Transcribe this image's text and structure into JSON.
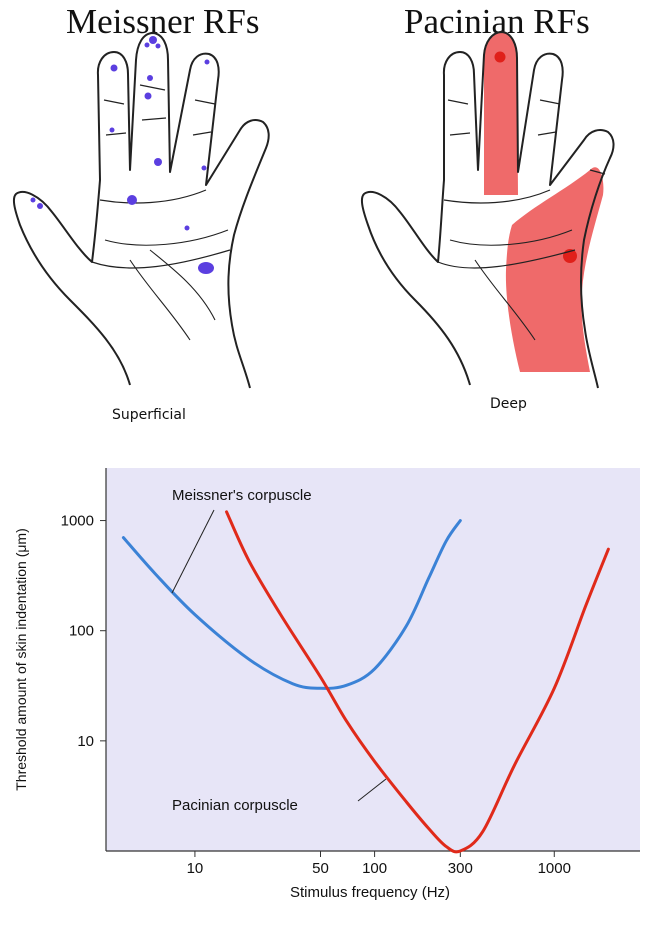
{
  "panels": {
    "left": {
      "title": "Meissner RFs",
      "caption": "Superficial",
      "dot_color": "#5b3fe0"
    },
    "right": {
      "title": "Pacinian RFs",
      "caption": "Deep",
      "field_color": "#ef6a6a"
    }
  },
  "chart_data": {
    "type": "line",
    "title": "",
    "xlabel": "Stimulus frequency (Hz)",
    "ylabel": "Threshold amount of skin indentation (μm)",
    "x_scale": "log",
    "y_scale": "log",
    "xlim": [
      3.2,
      3000
    ],
    "ylim": [
      1,
      3000
    ],
    "xticks": [
      10,
      50,
      100,
      300,
      1000
    ],
    "yticks": [
      10,
      100,
      1000
    ],
    "grid": false,
    "background": "#e7e5f7",
    "series": [
      {
        "name": "Meissner's corpuscle",
        "color": "#3b82d6",
        "x": [
          4,
          6,
          10,
          20,
          35,
          50,
          70,
          100,
          150,
          200,
          250,
          300
        ],
        "y": [
          700,
          330,
          140,
          55,
          33,
          30,
          32,
          45,
          110,
          300,
          650,
          1000
        ]
      },
      {
        "name": "Pacinian corpuscle",
        "color": "#e02a1a",
        "x": [
          15,
          20,
          30,
          50,
          70,
          100,
          150,
          200,
          250,
          300,
          400,
          600,
          1000,
          1500,
          2000
        ],
        "y": [
          1200,
          430,
          140,
          38,
          15,
          6.5,
          2.8,
          1.6,
          1.1,
          1.0,
          1.5,
          6,
          30,
          170,
          550
        ]
      }
    ]
  }
}
